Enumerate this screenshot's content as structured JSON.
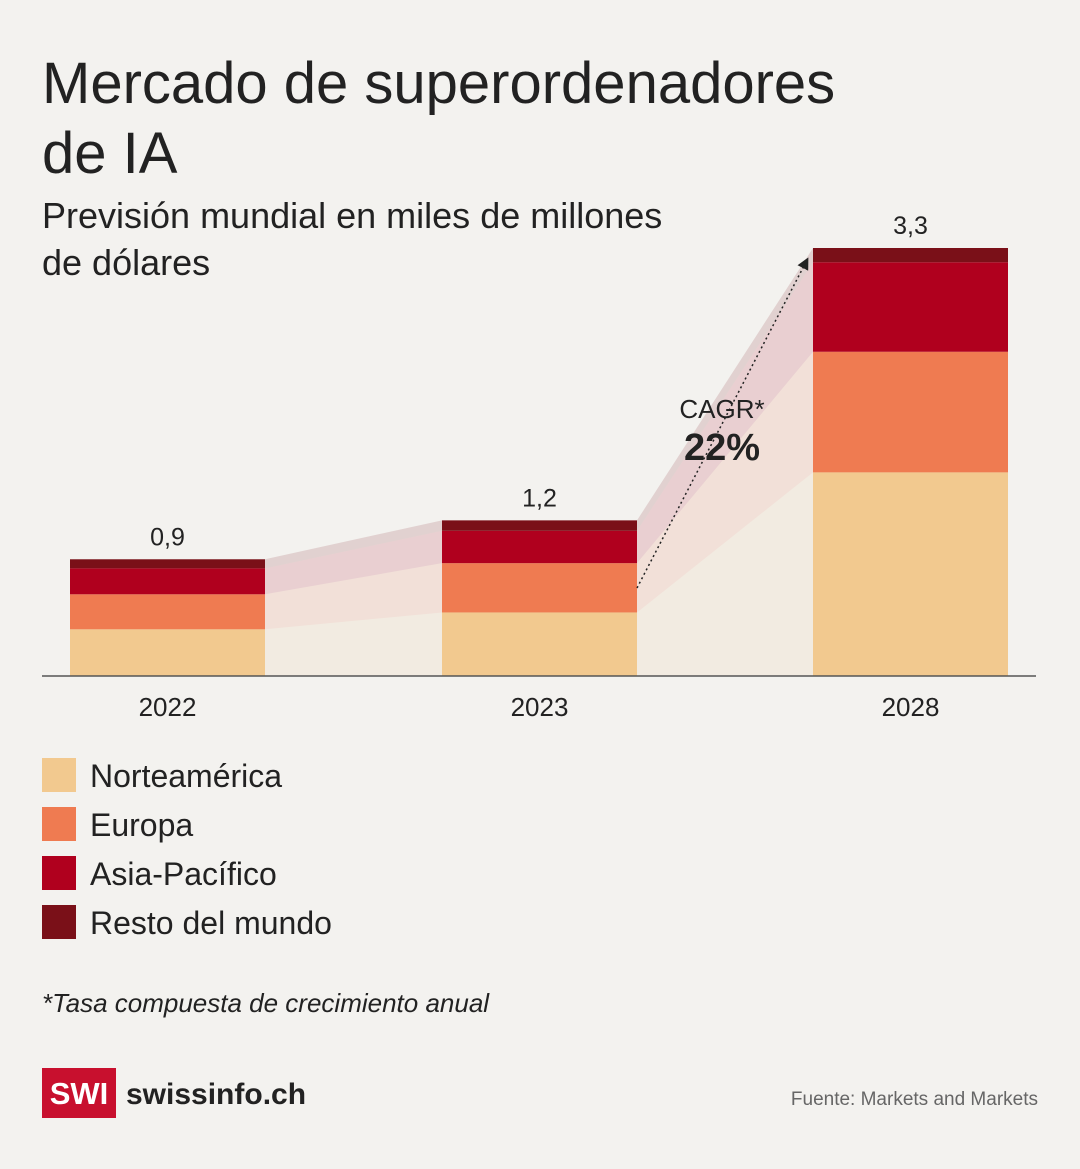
{
  "chart_data": {
    "type": "stacked_bar",
    "title_lines": [
      "Mercado de superordenadores",
      "de IA"
    ],
    "subtitle_lines": [
      "Previsión mundial en miles de millones",
      "de dólares"
    ],
    "categories": [
      "2022",
      "2023",
      "2028"
    ],
    "series": [
      {
        "name": "Norteamérica",
        "color": "#f2c98f",
        "values": [
          0.36,
          0.49,
          1.57
        ]
      },
      {
        "name": "Europa",
        "color": "#ef7b51",
        "values": [
          0.27,
          0.38,
          0.93
        ]
      },
      {
        "name": "Asia-Pacífico",
        "color": "#b0001e",
        "values": [
          0.2,
          0.25,
          0.69
        ]
      },
      {
        "name": "Resto del mundo",
        "color": "#7a1018",
        "values": [
          0.07,
          0.08,
          0.11
        ]
      }
    ],
    "totals": [
      0.9,
      1.2,
      3.3
    ],
    "total_labels": [
      "0,9",
      "1,2",
      "3,3"
    ],
    "annotation": {
      "label": "CAGR*",
      "value_label": "22%"
    },
    "footnote": "*Tasa compuesta de crecimiento anual",
    "logo": {
      "badge": "SWI",
      "name": "swissinfo.ch"
    },
    "source": "Fuente: Markets and Markets"
  }
}
